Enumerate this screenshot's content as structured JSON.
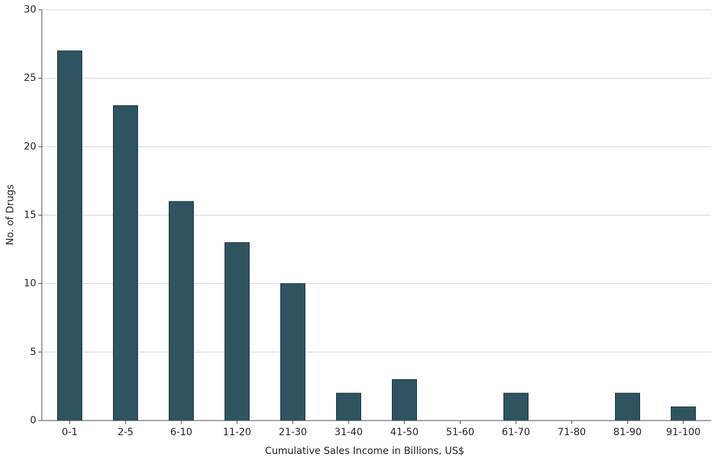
{
  "chart_data": {
    "type": "bar",
    "x_label": "Cumulative Sales Income in Billions, US$",
    "y_label": "No. of Drugs",
    "categories": [
      "0-1",
      "2-5",
      "6-10",
      "11-20",
      "21-30",
      "31-40",
      "41-50",
      "51-60",
      "61-70",
      "71-80",
      "81-90",
      "91-100"
    ],
    "values": [
      27,
      23,
      16,
      13,
      10,
      2,
      3,
      0,
      2,
      0,
      2,
      1
    ],
    "color": "#2e5361",
    "ylim": [
      0,
      30
    ],
    "yticks": [
      0,
      5,
      10,
      15,
      20,
      25,
      30
    ],
    "grid": true
  }
}
